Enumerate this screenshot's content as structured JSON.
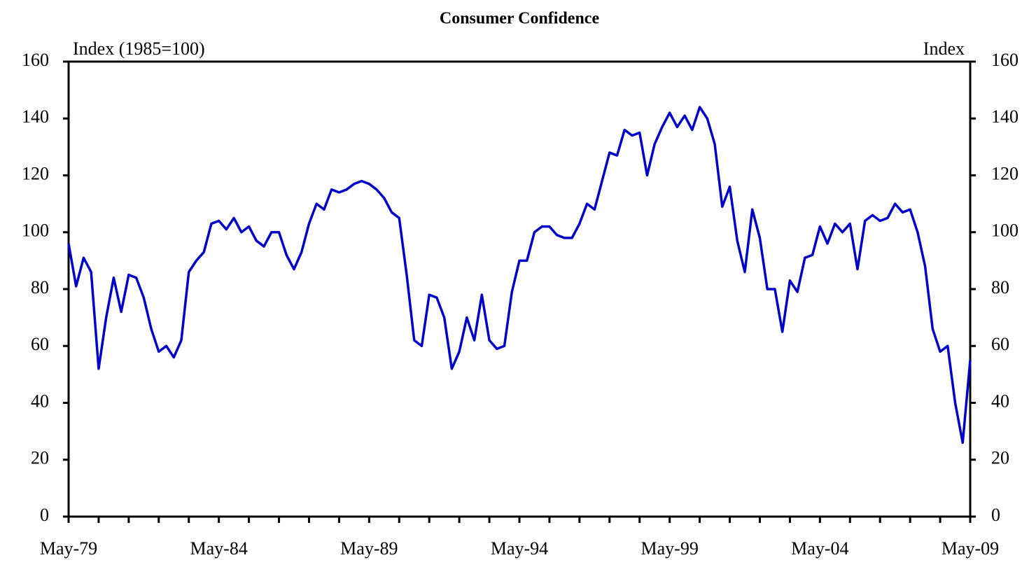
{
  "chart_data": {
    "type": "line",
    "title": "Consumer Confidence",
    "y_label": "Index (1985=100)",
    "y2_label": "Index",
    "categories": [
      "May-79",
      null,
      null,
      null,
      null,
      null,
      null,
      null,
      null,
      null,
      null,
      null,
      null,
      null,
      null,
      null,
      null,
      null,
      null,
      null,
      "May-84",
      null,
      null,
      null,
      null,
      null,
      null,
      null,
      null,
      null,
      null,
      null,
      null,
      null,
      null,
      null,
      null,
      null,
      null,
      null,
      "May-89",
      null,
      null,
      null,
      null,
      null,
      null,
      null,
      null,
      null,
      null,
      null,
      null,
      null,
      null,
      null,
      null,
      null,
      null,
      null,
      "May-94",
      null,
      null,
      null,
      null,
      null,
      null,
      null,
      null,
      null,
      null,
      null,
      null,
      null,
      null,
      null,
      null,
      null,
      null,
      null,
      "May-99",
      null,
      null,
      null,
      null,
      null,
      null,
      null,
      null,
      null,
      null,
      null,
      null,
      null,
      null,
      null,
      null,
      null,
      null,
      null,
      "May-04",
      null,
      null,
      null,
      null,
      null,
      null,
      null,
      null,
      null,
      null,
      null,
      null,
      null,
      null,
      null,
      null,
      null,
      null,
      null,
      "May-09"
    ],
    "series": [
      {
        "name": "Consumer Confidence",
        "color": "#0000cc",
        "values": [
          96,
          81,
          91,
          86,
          52,
          70,
          84,
          72,
          85,
          84,
          77,
          66,
          58,
          60,
          56,
          62,
          86,
          90,
          93,
          103,
          104,
          101,
          105,
          100,
          102,
          97,
          95,
          100,
          100,
          92,
          87,
          93,
          103,
          110,
          108,
          115,
          114,
          115,
          117,
          118,
          117,
          115,
          112,
          107,
          105,
          85,
          62,
          60,
          78,
          77,
          70,
          52,
          58,
          70,
          62,
          78,
          62,
          59,
          60,
          79,
          90,
          90,
          100,
          102,
          102,
          99,
          98,
          98,
          103,
          110,
          108,
          118,
          128,
          127,
          136,
          134,
          135,
          120,
          131,
          137,
          142,
          137,
          141,
          136,
          144,
          140,
          131,
          109,
          116,
          97,
          86,
          108,
          98,
          80,
          80,
          65,
          83,
          79,
          91,
          92,
          102,
          96,
          103,
          100,
          103,
          87,
          104,
          106,
          104,
          105,
          110,
          107,
          108,
          100,
          88,
          66,
          58,
          60,
          40,
          26,
          55
        ]
      }
    ],
    "ylim": [
      0,
      160
    ],
    "yticks": [
      0,
      20,
      40,
      60,
      80,
      100,
      120,
      140,
      160
    ],
    "y2lim": [
      0,
      160
    ],
    "y2ticks": [
      0,
      20,
      40,
      60,
      80,
      100,
      120,
      140,
      160
    ]
  }
}
